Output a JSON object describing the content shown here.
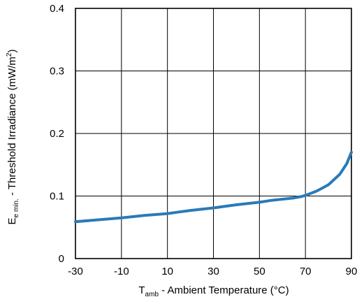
{
  "chart_data": {
    "type": "line",
    "xlabel": {
      "main": "T",
      "sub": "amb",
      "rest": " - Ambient Temperature (°C)"
    },
    "ylabel": {
      "main": "E",
      "sub": "e min.",
      "rest": " - Threshold Irradiance (mW/m",
      "sup": "2",
      "end": ")"
    },
    "xlim": [
      -30,
      90
    ],
    "ylim": [
      0,
      0.4
    ],
    "xticks": [
      -30,
      -10,
      10,
      30,
      50,
      70,
      90
    ],
    "yticks": [
      0,
      0.1,
      0.2,
      0.3,
      0.4
    ],
    "xtick_labels": [
      "-30",
      "-10",
      "10",
      "30",
      "50",
      "70",
      "90"
    ],
    "ytick_labels": [
      "0",
      "0.1",
      "0.2",
      "0.3",
      "0.4"
    ],
    "grid": true,
    "series": [
      {
        "color": "#2a7ab8",
        "x": [
          -30,
          -20,
          -10,
          0,
          10,
          20,
          30,
          40,
          50,
          55,
          60,
          65,
          68,
          70,
          75,
          80,
          85,
          88,
          90
        ],
        "y": [
          0.059,
          0.062,
          0.065,
          0.069,
          0.072,
          0.077,
          0.081,
          0.086,
          0.09,
          0.093,
          0.095,
          0.097,
          0.099,
          0.101,
          0.108,
          0.118,
          0.135,
          0.152,
          0.17
        ]
      }
    ]
  }
}
